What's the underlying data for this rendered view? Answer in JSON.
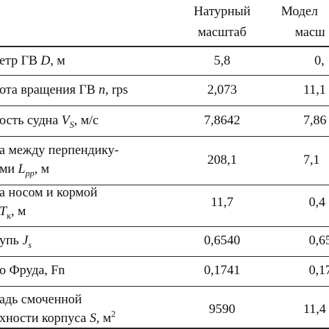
{
  "table": {
    "header": {
      "full": [
        "Натурный",
        "масштаб"
      ],
      "model": [
        "Модел",
        "масш"
      ]
    },
    "rows": [
      {
        "label": [
          [
            {
              "t": "етр ГВ "
            },
            {
              "t": "D",
              "i": true
            },
            {
              "t": ", м"
            }
          ]
        ],
        "full": "5,8",
        "model": "0,"
      },
      {
        "label": [
          [
            {
              "t": "ота вращения ГВ "
            },
            {
              "t": "n",
              "i": true
            },
            {
              "t": ", rps"
            }
          ]
        ],
        "full": "2,073",
        "model": "11,1"
      },
      {
        "label": [
          [
            {
              "t": "ость судна "
            },
            {
              "t": "V",
              "i": true
            },
            {
              "t": "S",
              "i": true,
              "sub": true
            },
            {
              "t": ", м/с"
            }
          ]
        ],
        "full": "7,8642",
        "model": "7,86"
      },
      {
        "label": [
          [
            {
              "t": "а между перпендику-"
            }
          ],
          [
            {
              "t": "ми "
            },
            {
              "t": "L",
              "i": true
            },
            {
              "t": "pp",
              "i": true,
              "sub": true
            },
            {
              "t": ", м"
            }
          ]
        ],
        "full": "208,1",
        "model": "7,1"
      },
      {
        "label": [
          [
            {
              "t": "а носом и кормой"
            }
          ],
          [
            {
              "t": "T",
              "i": true
            },
            {
              "t": "к",
              "sub": true
            },
            {
              "t": ", м"
            }
          ]
        ],
        "full": "11,7",
        "model": "0,4"
      },
      {
        "label": [
          [
            {
              "t": "упь "
            },
            {
              "t": "J",
              "i": true
            },
            {
              "t": "s",
              "i": true,
              "sub": true
            }
          ]
        ],
        "full": "0,6540",
        "model": "0,65"
      },
      {
        "label": [
          [
            {
              "t": "о Фруда, Fn"
            }
          ]
        ],
        "full": "0,1741",
        "model": "0,17"
      },
      {
        "label": [
          [
            {
              "t": "адь смоченной"
            }
          ],
          [
            {
              "t": "хности корпуса "
            },
            {
              "t": "S",
              "i": true
            },
            {
              "t": ", м"
            },
            {
              "t": "2",
              "sup": true
            }
          ]
        ],
        "full": "9590",
        "model": "11,4"
      }
    ]
  }
}
